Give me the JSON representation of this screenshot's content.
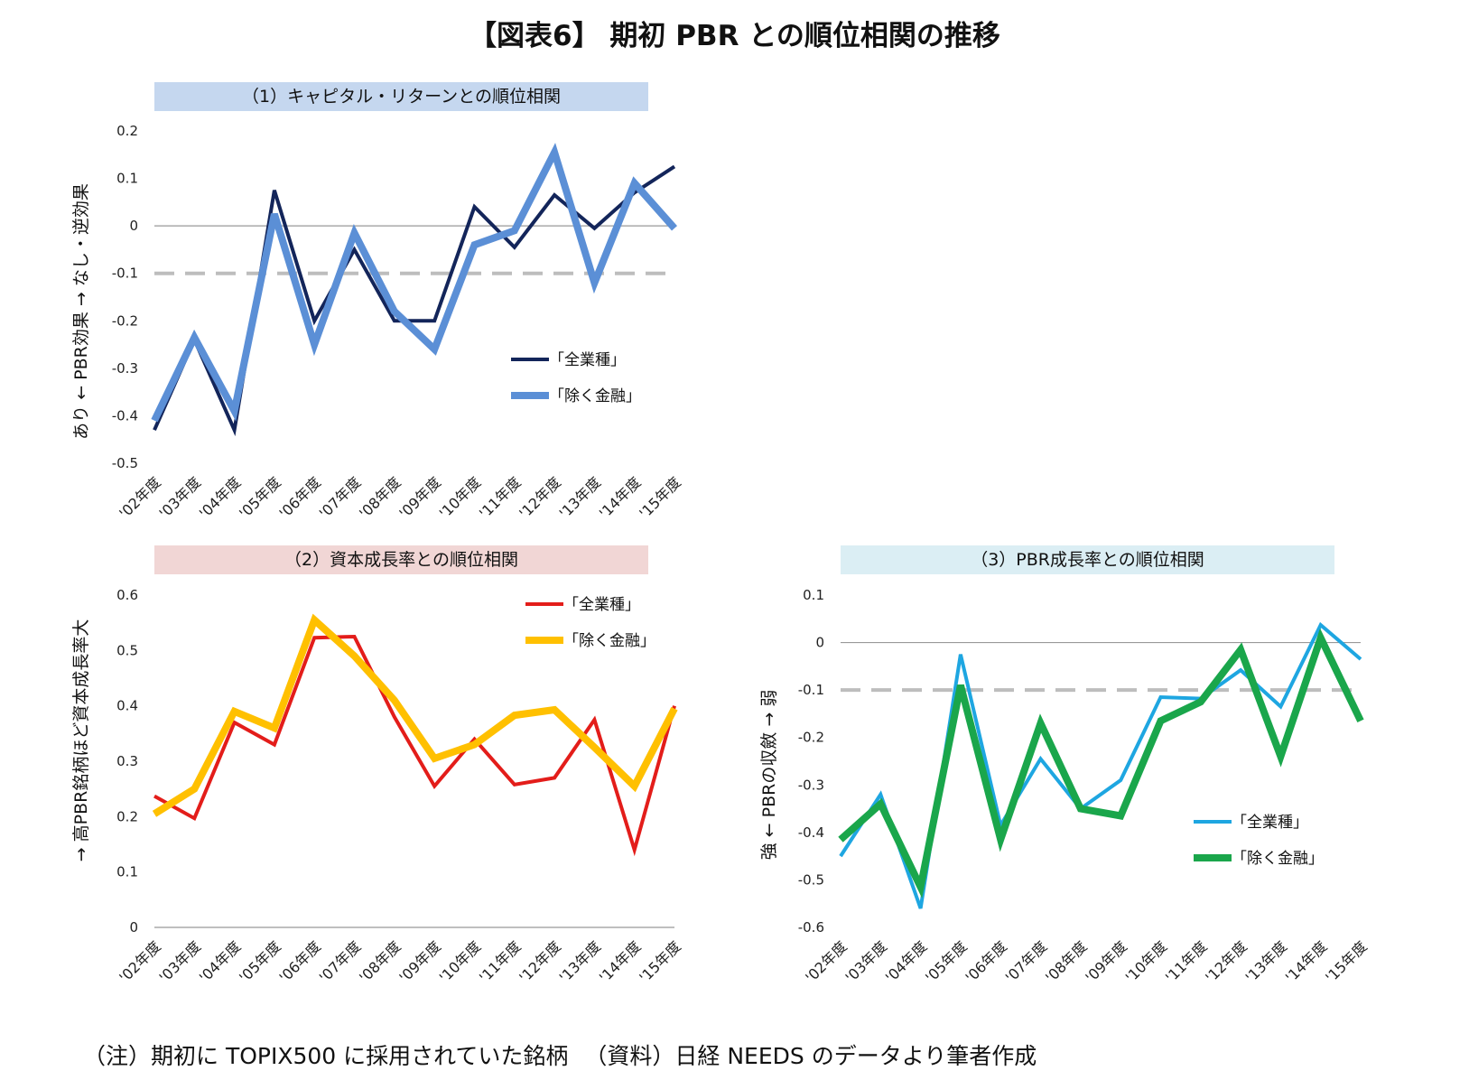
{
  "title": "【図表6】 期初 PBR との順位相関の推移",
  "footnote": {
    "note": "（注）期初に TOPIX500 に採用されていた銘柄",
    "source": "（資料）日経 NEEDS のデータより筆者作成"
  },
  "x_labels": [
    "'02年度",
    "'03年度",
    "'04年度",
    "'05年度",
    "'06年度",
    "'07年度",
    "'08年度",
    "'09年度",
    "'10年度",
    "'11年度",
    "'12年度",
    "'13年度",
    "'14年度",
    "'15年度"
  ],
  "chart_data": [
    {
      "type": "line",
      "title": "（1）キャピタル・リターンとの順位相関",
      "header_color": "#c5d7ef",
      "ylabel": "あり ← PBR効果 → なし・逆効果",
      "ylim": [
        -0.5,
        0.2
      ],
      "yticks": [
        "0.2",
        "0.1",
        "0",
        "-0.1",
        "-0.2",
        "-0.3",
        "-0.4",
        "-0.5"
      ],
      "reference_line": -0.1,
      "grid": false,
      "legend_position": "right-center",
      "categories": [
        "'02年度",
        "'03年度",
        "'04年度",
        "'05年度",
        "'06年度",
        "'07年度",
        "'08年度",
        "'09年度",
        "'10年度",
        "'11年度",
        "'12年度",
        "'13年度",
        "'14年度",
        "'15年度"
      ],
      "series": [
        {
          "name": "「全業種」",
          "color": "#13255a",
          "width": 4,
          "values": [
            -0.43,
            -0.24,
            -0.43,
            0.075,
            -0.2,
            -0.05,
            -0.2,
            -0.2,
            0.04,
            -0.045,
            0.065,
            -0.005,
            0.07,
            0.125
          ]
        },
        {
          "name": "「除く金融」",
          "color": "#5b8fd6",
          "width": 8,
          "values": [
            -0.41,
            -0.235,
            -0.39,
            0.025,
            -0.25,
            -0.015,
            -0.18,
            -0.26,
            -0.04,
            -0.01,
            0.155,
            -0.12,
            0.09,
            -0.005
          ]
        }
      ]
    },
    {
      "type": "line",
      "title": "（2）資本成長率との順位相関",
      "header_color": "#f1d6d5",
      "ylabel": "→ 高PBR銘柄ほど資本成長率大",
      "ylim": [
        0,
        0.6
      ],
      "yticks": [
        "0.6",
        "0.5",
        "0.4",
        "0.3",
        "0.2",
        "0.1",
        "0"
      ],
      "reference_line": null,
      "grid": false,
      "legend_position": "top-right",
      "categories": [
        "'02年度",
        "'03年度",
        "'04年度",
        "'05年度",
        "'06年度",
        "'07年度",
        "'08年度",
        "'09年度",
        "'10年度",
        "'11年度",
        "'12年度",
        "'13年度",
        "'14年度",
        "'15年度"
      ],
      "series": [
        {
          "name": "「全業種」",
          "color": "#e31d1a",
          "width": 4,
          "values": [
            0.237,
            0.197,
            0.37,
            0.33,
            0.523,
            0.525,
            0.38,
            0.255,
            0.34,
            0.258,
            0.27,
            0.375,
            0.14,
            0.4
          ]
        },
        {
          "name": "「除く金融」",
          "color": "#ffc000",
          "width": 8,
          "values": [
            0.205,
            0.25,
            0.39,
            0.36,
            0.555,
            0.49,
            0.41,
            0.305,
            0.33,
            0.383,
            0.393,
            0.325,
            0.255,
            0.395
          ]
        }
      ]
    },
    {
      "type": "line",
      "title": "（3）PBR成長率との順位相関",
      "header_color": "#dbeef4",
      "ylabel": "強 ← PBRの収斂 → 弱",
      "ylim": [
        -0.6,
        0.1
      ],
      "yticks": [
        "0.1",
        "0",
        "-0.1",
        "-0.2",
        "-0.3",
        "-0.4",
        "-0.5",
        "-0.6"
      ],
      "reference_line": -0.1,
      "grid": false,
      "legend_position": "right-center",
      "categories": [
        "'02年度",
        "'03年度",
        "'04年度",
        "'05年度",
        "'06年度",
        "'07年度",
        "'08年度",
        "'09年度",
        "'10年度",
        "'11年度",
        "'12年度",
        "'13年度",
        "'14年度",
        "'15年度"
      ],
      "series": [
        {
          "name": "「全業種」",
          "color": "#1ea6e1",
          "width": 4,
          "values": [
            -0.45,
            -0.32,
            -0.56,
            -0.025,
            -0.385,
            -0.245,
            -0.35,
            -0.29,
            -0.115,
            -0.118,
            -0.058,
            -0.135,
            0.037,
            -0.035
          ]
        },
        {
          "name": "「除く金融」",
          "color": "#1aa64b",
          "width": 8,
          "values": [
            -0.415,
            -0.34,
            -0.515,
            -0.09,
            -0.415,
            -0.17,
            -0.35,
            -0.365,
            -0.165,
            -0.125,
            -0.015,
            -0.24,
            0.01,
            -0.165
          ]
        }
      ]
    }
  ]
}
